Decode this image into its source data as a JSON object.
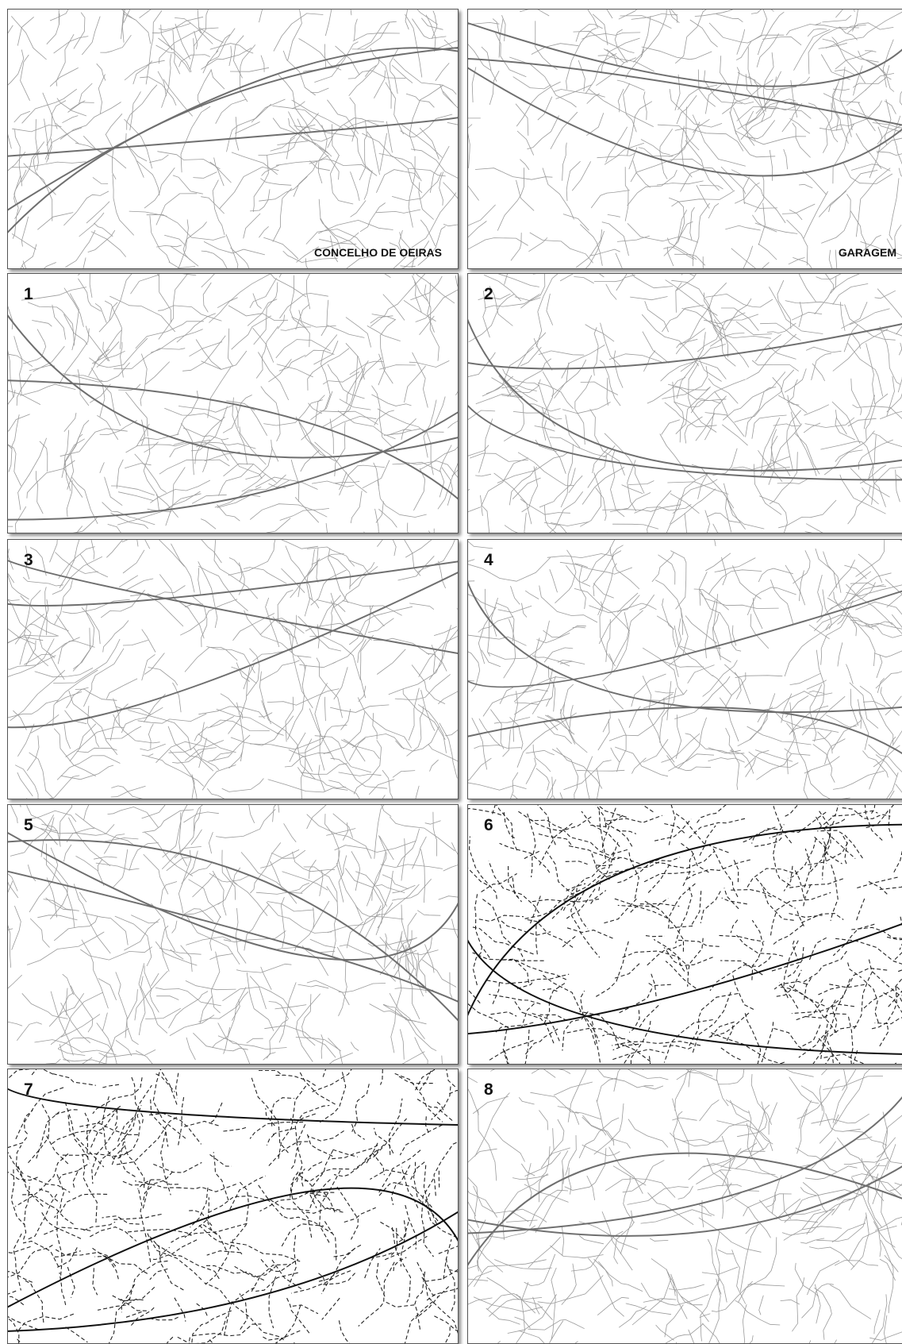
{
  "panels": [
    {
      "label": "CONCELHO DE OEIRAS"
    },
    {
      "label": "GARAGEM"
    },
    {
      "label": "1"
    },
    {
      "label": "2"
    },
    {
      "label": "3"
    },
    {
      "label": "4"
    },
    {
      "label": "5"
    },
    {
      "label": "6"
    },
    {
      "label": "7"
    },
    {
      "label": "8"
    }
  ]
}
